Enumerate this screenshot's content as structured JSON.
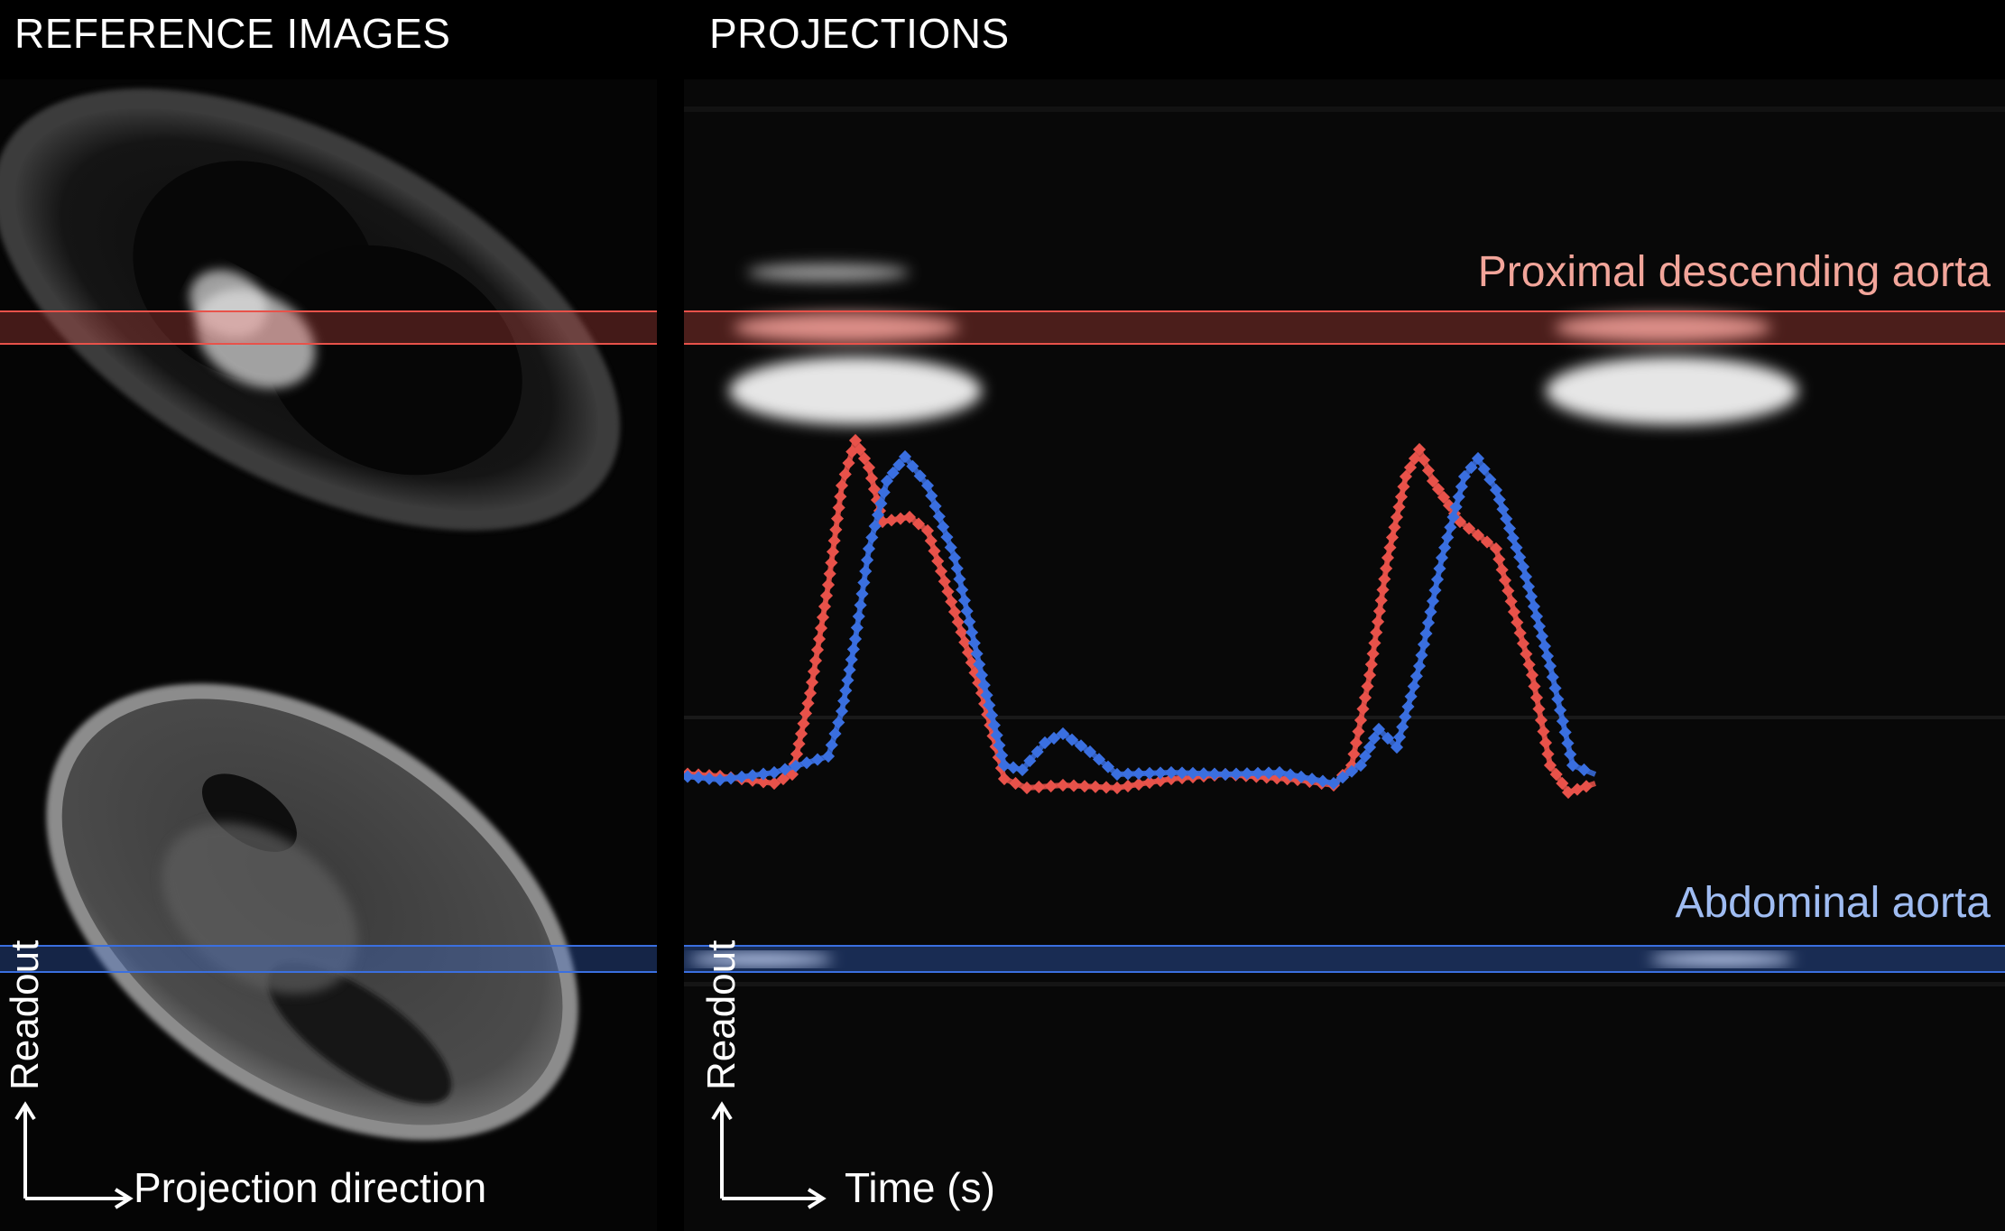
{
  "headers": {
    "reference": "REFERENCE IMAGES",
    "projections": "PROJECTIONS"
  },
  "reference_panel": {
    "axis_vertical": "Readout",
    "axis_horizontal": "Projection direction"
  },
  "projection_panel": {
    "axis_vertical": "Readout",
    "axis_horizontal": "Time (s)",
    "labels": {
      "proximal": "Proximal descending aorta",
      "abdominal": "Abdominal aorta"
    }
  },
  "colors": {
    "proximal": "#e8524a",
    "abdominal": "#3a6fe0",
    "background": "#000000",
    "text": "#ffffff"
  }
}
